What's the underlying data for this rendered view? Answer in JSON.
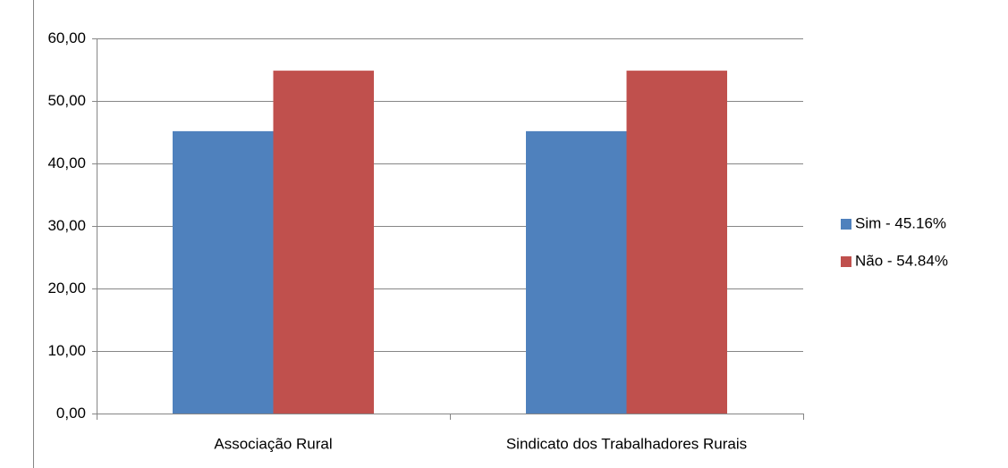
{
  "chart_data": {
    "type": "bar",
    "categories": [
      "Associação Rural",
      "Sindicato dos Trabalhadores Rurais"
    ],
    "series": [
      {
        "name": "Sim - 45.16%",
        "color": "#4f81bd",
        "values": [
          45.16,
          45.16
        ]
      },
      {
        "name": "Não - 54.84%",
        "color": "#c0504d",
        "values": [
          54.84,
          54.84
        ]
      }
    ],
    "ylim": [
      0,
      60
    ],
    "yticks": [
      {
        "value": 0,
        "label": "0,00"
      },
      {
        "value": 10,
        "label": "10,00"
      },
      {
        "value": 20,
        "label": "20,00"
      },
      {
        "value": 30,
        "label": "30,00"
      },
      {
        "value": 40,
        "label": "40,00"
      },
      {
        "value": 50,
        "label": "50,00"
      },
      {
        "value": 60,
        "label": "60,00"
      }
    ],
    "grid": true,
    "legend": "right"
  }
}
